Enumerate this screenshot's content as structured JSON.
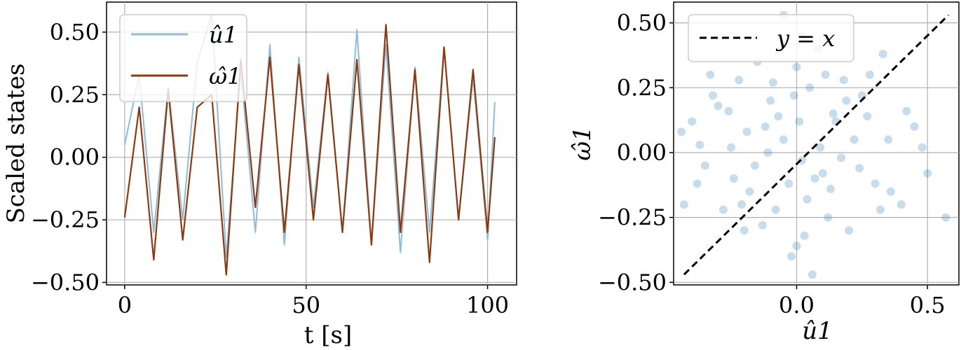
{
  "chart_data": [
    {
      "type": "line",
      "xlabel": "t [s]",
      "ylabel": "Scaled states",
      "xlim": [
        -5,
        108
      ],
      "ylim": [
        -0.51,
        0.62
      ],
      "xticks": [
        "0",
        "50",
        "100"
      ],
      "xtick_values": [
        0,
        50,
        100
      ],
      "yticks": [
        "0.50",
        "0.25",
        "0.00",
        "−0.25",
        "−0.50"
      ],
      "ytick_values": [
        0.5,
        0.25,
        0.0,
        -0.25,
        -0.5
      ],
      "grid": true,
      "legend_position": "top-left",
      "series": [
        {
          "name": "û1",
          "color": "#8fbcdb",
          "x": [
            0,
            4,
            8,
            12,
            16,
            20,
            24,
            28,
            32,
            36,
            40,
            44,
            48,
            52,
            56,
            60,
            64,
            68,
            72,
            76,
            80,
            84,
            88,
            92,
            96,
            100,
            102
          ],
          "values": [
            0.05,
            0.33,
            -0.3,
            0.28,
            -0.25,
            0.38,
            0.57,
            -0.4,
            0.35,
            -0.3,
            0.45,
            -0.35,
            0.4,
            -0.2,
            0.34,
            -0.3,
            0.51,
            -0.35,
            0.45,
            -0.38,
            0.36,
            -0.3,
            0.44,
            -0.25,
            0.32,
            -0.33,
            0.22
          ]
        },
        {
          "name": "ω̂1",
          "color": "#8b3a0f",
          "x": [
            0,
            4,
            8,
            12,
            16,
            20,
            24,
            28,
            32,
            36,
            40,
            44,
            48,
            52,
            56,
            60,
            64,
            68,
            72,
            76,
            80,
            84,
            88,
            92,
            96,
            100,
            102
          ],
          "values": [
            -0.24,
            0.2,
            -0.41,
            0.27,
            -0.33,
            0.2,
            0.25,
            -0.47,
            0.39,
            -0.2,
            0.4,
            -0.3,
            0.37,
            -0.25,
            0.33,
            -0.3,
            0.39,
            -0.35,
            0.53,
            -0.3,
            0.35,
            -0.42,
            0.44,
            -0.25,
            0.35,
            -0.3,
            0.08
          ]
        }
      ]
    },
    {
      "type": "scatter",
      "xlabel": "û1",
      "ylabel": "ω̂1",
      "xlim": [
        -0.47,
        0.62
      ],
      "ylim": [
        -0.51,
        0.58
      ],
      "xticks": [
        "0.0",
        "0.5"
      ],
      "xtick_values": [
        0.0,
        0.5
      ],
      "yticks": [
        "0.50",
        "0.25",
        "0.00",
        "−0.25",
        "−0.50"
      ],
      "ytick_values": [
        0.5,
        0.25,
        0.0,
        -0.25,
        -0.5
      ],
      "grid": true,
      "legend_position": "top-left",
      "point_color": "#1f77b4",
      "reference_line": {
        "label": "y = x",
        "x": [
          -0.43,
          0.58
        ],
        "y": [
          -0.47,
          0.53
        ]
      },
      "points": [
        [
          -0.05,
          0.05
        ],
        [
          0.02,
          -0.03
        ],
        [
          -0.12,
          0.1
        ],
        [
          0.1,
          -0.08
        ],
        [
          0.15,
          0.12
        ],
        [
          -0.18,
          -0.15
        ],
        [
          0.05,
          0.25
        ],
        [
          -0.08,
          -0.22
        ],
        [
          0.22,
          0.05
        ],
        [
          -0.25,
          0.02
        ],
        [
          0.0,
          0.33
        ],
        [
          0.03,
          -0.32
        ],
        [
          -0.3,
          0.18
        ],
        [
          0.3,
          -0.12
        ],
        [
          0.18,
          0.28
        ],
        [
          -0.2,
          -0.3
        ],
        [
          0.25,
          0.22
        ],
        [
          -0.15,
          0.35
        ],
        [
          0.35,
          0.05
        ],
        [
          -0.35,
          -0.05
        ],
        [
          0.08,
          0.4
        ],
        [
          -0.02,
          -0.4
        ],
        [
          0.4,
          -0.2
        ],
        [
          -0.4,
          0.12
        ],
        [
          0.12,
          -0.25
        ],
        [
          -0.1,
          0.2
        ],
        [
          0.2,
          -0.3
        ],
        [
          -0.22,
          0.28
        ],
        [
          0.28,
          0.3
        ],
        [
          -0.28,
          -0.22
        ],
        [
          0.45,
          0.1
        ],
        [
          -0.05,
          0.53
        ],
        [
          0.06,
          -0.47
        ],
        [
          0.5,
          -0.08
        ],
        [
          0.57,
          -0.25
        ],
        [
          -0.43,
          -0.2
        ],
        [
          0.33,
          0.38
        ],
        [
          -0.33,
          0.3
        ],
        [
          0.14,
          0.15
        ],
        [
          -0.16,
          -0.05
        ],
        [
          0.01,
          0.12
        ],
        [
          -0.03,
          -0.12
        ],
        [
          0.09,
          0.02
        ],
        [
          -0.11,
          0.0
        ],
        [
          0.17,
          -0.02
        ],
        [
          -0.07,
          0.14
        ],
        [
          0.04,
          -0.18
        ],
        [
          -0.19,
          0.08
        ],
        [
          0.24,
          -0.06
        ],
        [
          -0.24,
          -0.1
        ],
        [
          0.11,
          0.3
        ],
        [
          -0.13,
          -0.28
        ],
        [
          0.32,
          -0.22
        ],
        [
          -0.32,
          0.22
        ],
        [
          0.27,
          0.14
        ],
        [
          -0.26,
          0.16
        ],
        [
          0.07,
          -0.1
        ],
        [
          -0.09,
          0.27
        ],
        [
          0.19,
          0.2
        ],
        [
          -0.21,
          -0.2
        ],
        [
          0.13,
          -0.14
        ],
        [
          -0.01,
          0.22
        ],
        [
          0.36,
          -0.15
        ],
        [
          -0.37,
          0.03
        ],
        [
          0.42,
          0.16
        ],
        [
          -0.38,
          -0.12
        ],
        [
          0.02,
          0.45
        ],
        [
          0.0,
          -0.36
        ],
        [
          0.48,
          0.02
        ],
        [
          -0.44,
          0.08
        ]
      ]
    }
  ]
}
